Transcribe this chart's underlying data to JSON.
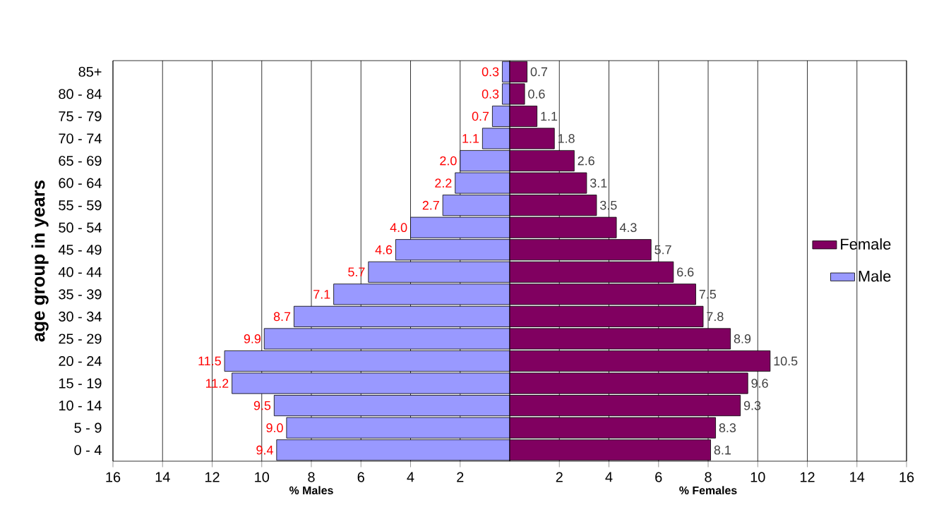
{
  "chart_data": [
    {
      "type": "bar",
      "orientation": "horizontal",
      "ylabel": "age group in years",
      "xlabel": "% Males",
      "categories": [
        "85+",
        "80 - 84",
        "75 - 79",
        "70 - 74",
        "65 - 69",
        "60 - 64",
        "55 - 59",
        "50 - 54",
        "45 - 49",
        "40 - 44",
        "35 - 39",
        "30 - 34",
        "25 - 29",
        "20 - 24",
        "15 - 19",
        "10 - 14",
        "5 - 9",
        "0 - 4"
      ],
      "series": [
        {
          "name": "Male",
          "color": "#9999ff",
          "values": [
            0.3,
            0.3,
            0.7,
            1.1,
            2.0,
            2.2,
            2.7,
            4.0,
            4.6,
            5.7,
            7.1,
            8.7,
            9.9,
            11.5,
            11.2,
            9.5,
            9.0,
            9.4
          ],
          "value_labels": [
            "0.3",
            "0.3",
            "0.7",
            "1.1",
            "2.0",
            "2.2",
            "2.7",
            "4.0",
            "4.6",
            "5.7",
            "7.1",
            "8.7",
            "9.9",
            "11.5",
            "11.2",
            "9.5",
            "9.0",
            "9.4"
          ]
        }
      ],
      "xlim": [
        16,
        0
      ],
      "xticks": [
        16,
        14,
        12,
        10,
        8,
        6,
        4,
        2
      ],
      "grid": "x",
      "legend": "right"
    },
    {
      "type": "bar",
      "orientation": "horizontal",
      "xlabel": "% Females",
      "categories": [
        null,
        null,
        null,
        null,
        null,
        null,
        null,
        null,
        null,
        null,
        null,
        null,
        null,
        null,
        null,
        null,
        null,
        null
      ],
      "series": [
        {
          "name": "Female",
          "color": "#800060",
          "values": [
            0.7,
            0.6,
            1.1,
            1.8,
            2.6,
            3.1,
            3.5,
            4.3,
            5.7,
            6.6,
            7.5,
            7.8,
            8.9,
            10.5,
            9.6,
            9.3,
            8.3,
            8.1
          ],
          "value_labels": [
            "0.7",
            "0.6",
            "1.1",
            "1.8",
            "2.6",
            "3.1",
            "3.5",
            "4.3",
            "5.7",
            "6.6",
            "7.5",
            "7.8",
            "8.9",
            "10.5",
            "9.6",
            "9.3",
            "8.3",
            "8.1"
          ]
        }
      ],
      "xlim": [
        0,
        16
      ],
      "xticks": [
        2,
        4,
        6,
        8,
        10,
        12,
        14,
        16
      ],
      "grid": "x",
      "legend": "right",
      "tick_labels": "x"
    }
  ]
}
